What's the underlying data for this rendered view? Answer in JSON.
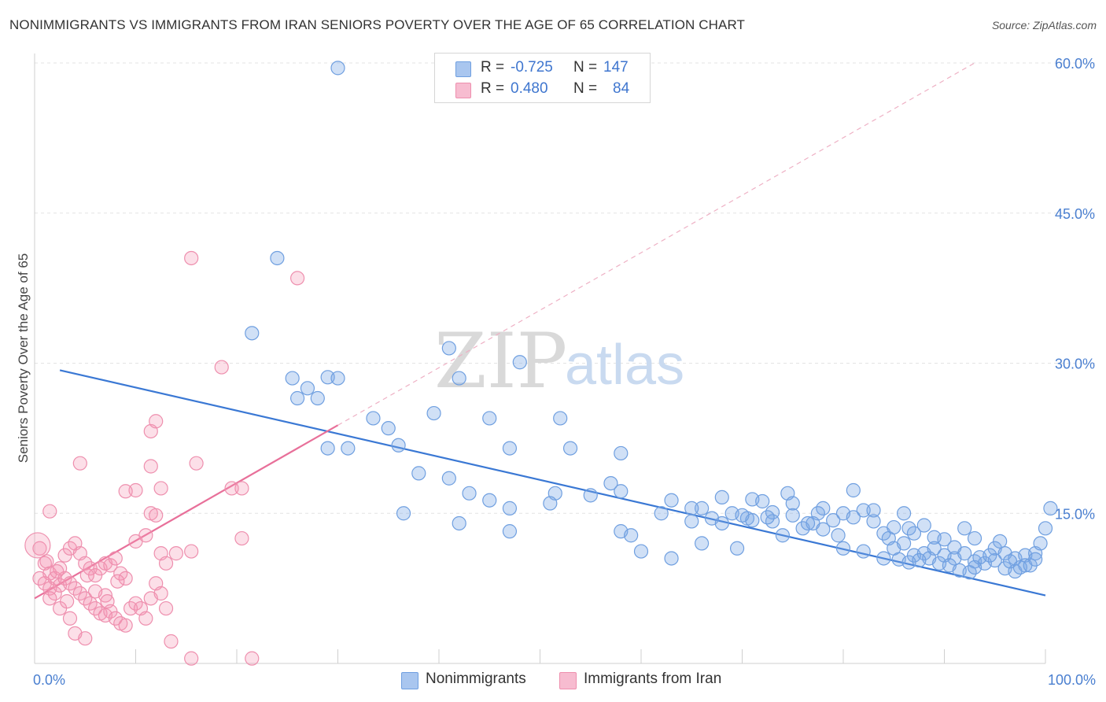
{
  "title": "NONIMMIGRANTS VS IMMIGRANTS FROM IRAN SENIORS POVERTY OVER THE AGE OF 65 CORRELATION CHART",
  "source": "Source: ZipAtlas.com",
  "watermark": {
    "zip": "ZIP",
    "atlas": "atlas"
  },
  "colors": {
    "blue": "#6f9fe0",
    "blue_line": "#3a78d4",
    "pink": "#ee8fae",
    "pink_line": "#e8709a",
    "tick": "#4a7fd0"
  },
  "legend": {
    "rows": [
      {
        "r_label": "R =",
        "r_value": "-0.725",
        "n_label": "N =",
        "n_value": "147",
        "color": "#a9c6ef"
      },
      {
        "r_label": "R =",
        "r_value": "0.480",
        "n_label": "N =",
        "n_value": "84",
        "color": "#f7bcd0"
      }
    ]
  },
  "bottom_legend": [
    {
      "label": "Nonimmigrants",
      "color": "#a9c6ef"
    },
    {
      "label": "Immigrants from Iran",
      "color": "#f7bcd0"
    }
  ],
  "chart_data": {
    "type": "scatter",
    "title": "NONIMMIGRANTS VS IMMIGRANTS FROM IRAN SENIORS POVERTY OVER THE AGE OF 65 CORRELATION CHART",
    "xlabel": "",
    "ylabel": "Seniors Poverty Over the Age of 65",
    "xlim": [
      0,
      100
    ],
    "ylim": [
      0,
      60
    ],
    "x_tick_labels": [
      "0.0%",
      "100.0%"
    ],
    "y_ticks": [
      15,
      30,
      45,
      60
    ],
    "y_tick_labels": [
      "15.0%",
      "30.0%",
      "45.0%",
      "60.0%"
    ],
    "series": [
      {
        "name": "Nonimmigrants",
        "r": -0.725,
        "n": 147,
        "trend": {
          "x": [
            2.5,
            100
          ],
          "y": [
            29.3,
            6.8
          ]
        },
        "points": [
          [
            30,
            59.5
          ],
          [
            24,
            40.5
          ],
          [
            21.5,
            33
          ],
          [
            41,
            31.5
          ],
          [
            25.5,
            28.5
          ],
          [
            29,
            28.6
          ],
          [
            27,
            27.5
          ],
          [
            30,
            28.5
          ],
          [
            42,
            28.5
          ],
          [
            48,
            30.1
          ],
          [
            26,
            26.5
          ],
          [
            28,
            26.5
          ],
          [
            39.5,
            25
          ],
          [
            33.5,
            24.5
          ],
          [
            35,
            23.5
          ],
          [
            45,
            24.5
          ],
          [
            52,
            24.5
          ],
          [
            29,
            21.5
          ],
          [
            31,
            21.5
          ],
          [
            36,
            21.8
          ],
          [
            47,
            21.5
          ],
          [
            53,
            21.5
          ],
          [
            58,
            21
          ],
          [
            38,
            19
          ],
          [
            41,
            18.5
          ],
          [
            57,
            18
          ],
          [
            55,
            16.8
          ],
          [
            58,
            17.2
          ],
          [
            36.5,
            15
          ],
          [
            51.5,
            17
          ],
          [
            43,
            17
          ],
          [
            45,
            16.3
          ],
          [
            47,
            15.5
          ],
          [
            51,
            16
          ],
          [
            63,
            16.3
          ],
          [
            66,
            15.5
          ],
          [
            62,
            15
          ],
          [
            65,
            15.5
          ],
          [
            69,
            15
          ],
          [
            68,
            16.6
          ],
          [
            74.5,
            17
          ],
          [
            71,
            16.4
          ],
          [
            72,
            16.2
          ],
          [
            75,
            16
          ],
          [
            81,
            17.3
          ],
          [
            78,
            15.5
          ],
          [
            73,
            15.1
          ],
          [
            70.5,
            14.5
          ],
          [
            80,
            15
          ],
          [
            82,
            15.3
          ],
          [
            42,
            14
          ],
          [
            47,
            13.2
          ],
          [
            58,
            13.2
          ],
          [
            59,
            12.8
          ],
          [
            60,
            11.2
          ],
          [
            65,
            14.2
          ],
          [
            71,
            14.3
          ],
          [
            73,
            14.2
          ],
          [
            74,
            12.8
          ],
          [
            76,
            13.5
          ],
          [
            77,
            14
          ],
          [
            78,
            13.4
          ],
          [
            83,
            14.2
          ],
          [
            84,
            13
          ],
          [
            84.5,
            12.5
          ],
          [
            85,
            13.6
          ],
          [
            86.5,
            13.5
          ],
          [
            88,
            13.8
          ],
          [
            89,
            12.6
          ],
          [
            90,
            12.4
          ],
          [
            92,
            13.5
          ],
          [
            93,
            12.5
          ],
          [
            95,
            11.5
          ],
          [
            95.5,
            12.2
          ],
          [
            96,
            11
          ],
          [
            97,
            10.5
          ],
          [
            98,
            10.8
          ],
          [
            99,
            11
          ],
          [
            99.5,
            12
          ],
          [
            100,
            13.5
          ],
          [
            100.5,
            15.5
          ],
          [
            80,
            11.5
          ],
          [
            82,
            11.2
          ],
          [
            85,
            11.5
          ],
          [
            86,
            12
          ],
          [
            87,
            10.8
          ],
          [
            88,
            11
          ],
          [
            89,
            11.5
          ],
          [
            90,
            10.8
          ],
          [
            91,
            10.5
          ],
          [
            92,
            11
          ],
          [
            93,
            10.2
          ],
          [
            94,
            10
          ],
          [
            95,
            10.3
          ],
          [
            96,
            9.5
          ],
          [
            97,
            9.2
          ],
          [
            98,
            9.8
          ],
          [
            63,
            10.5
          ],
          [
            69.5,
            11.5
          ],
          [
            66,
            12
          ],
          [
            67,
            14.5
          ],
          [
            72.5,
            14.6
          ],
          [
            76.5,
            14
          ],
          [
            79,
            14.3
          ],
          [
            81,
            14.6
          ],
          [
            83,
            15.3
          ],
          [
            86,
            15
          ],
          [
            87,
            13
          ],
          [
            91,
            11.6
          ],
          [
            93.5,
            10.6
          ],
          [
            94.5,
            10.8
          ],
          [
            96.5,
            10.2
          ],
          [
            97.5,
            9.6
          ],
          [
            98.5,
            9.8
          ],
          [
            99,
            10.4
          ],
          [
            88.5,
            10.5
          ],
          [
            89.5,
            10
          ],
          [
            90.5,
            9.8
          ],
          [
            91.5,
            9.3
          ],
          [
            92.5,
            9.1
          ],
          [
            93,
            9.6
          ],
          [
            84,
            10.5
          ],
          [
            85.5,
            10.4
          ],
          [
            86.5,
            10.1
          ],
          [
            87.5,
            10.3
          ],
          [
            75,
            14.8
          ],
          [
            77.5,
            15
          ],
          [
            79.5,
            12.8
          ],
          [
            70,
            14.8
          ],
          [
            68,
            14
          ]
        ]
      },
      {
        "name": "Immigrants from Iran",
        "r": 0.48,
        "n": 84,
        "trend": {
          "x": [
            0,
            30
          ],
          "y": [
            6.5,
            23.8
          ]
        },
        "trend_dashed": {
          "x": [
            30,
            93
          ],
          "y": [
            23.8,
            60
          ]
        },
        "points": [
          [
            15.5,
            40.5
          ],
          [
            26,
            38.5
          ],
          [
            18.5,
            29.6
          ],
          [
            11.5,
            23.2
          ],
          [
            12,
            24.2
          ],
          [
            4.5,
            20
          ],
          [
            11.5,
            19.7
          ],
          [
            16,
            20
          ],
          [
            19.5,
            17.5
          ],
          [
            20.5,
            17.5
          ],
          [
            12.5,
            17.5
          ],
          [
            10,
            17.3
          ],
          [
            11.5,
            15
          ],
          [
            12,
            14.8
          ],
          [
            1.5,
            15.2
          ],
          [
            9,
            17.2
          ],
          [
            20.5,
            12.5
          ],
          [
            10,
            12.2
          ],
          [
            15.5,
            11.2
          ],
          [
            14,
            11
          ],
          [
            11,
            12.8
          ],
          [
            12.5,
            11
          ],
          [
            13,
            10
          ],
          [
            0.5,
            11.5
          ],
          [
            1,
            10
          ],
          [
            1.5,
            9
          ],
          [
            2,
            8.5
          ],
          [
            2.5,
            9.5
          ],
          [
            3,
            10.8
          ],
          [
            3.5,
            11.5
          ],
          [
            4,
            12
          ],
          [
            4.5,
            11
          ],
          [
            5,
            10
          ],
          [
            5.5,
            9.5
          ],
          [
            6,
            8.8
          ],
          [
            6.5,
            9.5
          ],
          [
            7,
            10
          ],
          [
            7.5,
            9.8
          ],
          [
            8,
            10.5
          ],
          [
            8.5,
            9
          ],
          [
            9,
            8.5
          ],
          [
            0.5,
            8.5
          ],
          [
            1,
            8
          ],
          [
            1.5,
            7.5
          ],
          [
            2,
            7
          ],
          [
            2.5,
            7.8
          ],
          [
            3,
            8.5
          ],
          [
            3.5,
            8
          ],
          [
            4,
            7.5
          ],
          [
            4.5,
            7
          ],
          [
            5,
            6.5
          ],
          [
            5.5,
            6
          ],
          [
            6,
            5.5
          ],
          [
            6.5,
            5
          ],
          [
            7,
            4.8
          ],
          [
            7.5,
            5.2
          ],
          [
            8,
            4.5
          ],
          [
            8.5,
            4
          ],
          [
            9,
            3.8
          ],
          [
            9.5,
            5.5
          ],
          [
            10,
            6
          ],
          [
            10.5,
            5.5
          ],
          [
            11,
            4.5
          ],
          [
            11.5,
            6.5
          ],
          [
            12,
            8
          ],
          [
            12.5,
            7
          ],
          [
            13,
            5.5
          ],
          [
            1.5,
            6.5
          ],
          [
            2.5,
            5.5
          ],
          [
            3.5,
            4.5
          ],
          [
            4,
            3
          ],
          [
            5,
            2.5
          ],
          [
            7,
            6.8
          ],
          [
            13.5,
            2.2
          ],
          [
            15.5,
            0.5
          ],
          [
            21.5,
            0.5
          ],
          [
            6,
            7.2
          ],
          [
            7.2,
            6.2
          ],
          [
            8.2,
            8.2
          ],
          [
            5.2,
            8.8
          ],
          [
            3.2,
            6.2
          ],
          [
            2.2,
            9.2
          ],
          [
            1.2,
            10.2
          ],
          [
            0.3,
            11.8
          ]
        ]
      }
    ]
  }
}
